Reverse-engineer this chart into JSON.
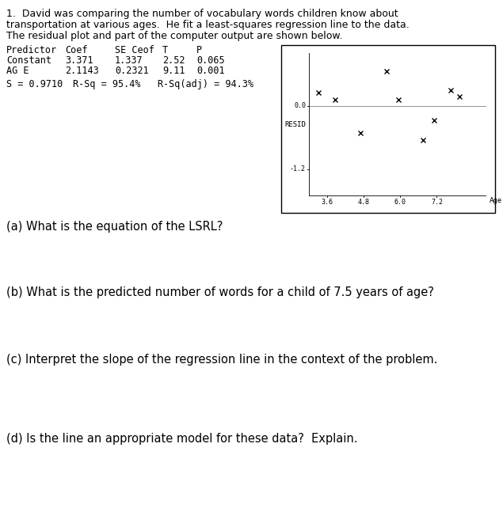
{
  "title_line1": "1.  David was comparing the number of vocabulary words children know about",
  "title_line2": "transportation at various ages.  He fit a least-squares regression line to the data.",
  "title_line3": "The residual plot and part of the computer output are shown below.",
  "table_headers": [
    "Predictor",
    "Coef",
    "SE Ceof",
    "T",
    "P"
  ],
  "table_row1": [
    "Constant",
    "3.371",
    "1.337",
    "2.52",
    "0.065"
  ],
  "table_row2": [
    "AG E",
    "2.1143",
    "0.2321",
    "9.11",
    "0.001"
  ],
  "s_line": "S = 0.9710",
  "rsq_line": "R-Sq = 95.4%   R-Sq(adj) = 94.3%",
  "question_a": "(a) What is the equation of the LSRL?",
  "question_b": "(b) What is the predicted number of words for a child of 7.5 years of age?",
  "question_c": "(c) Interpret the slope of the regression line in the context of the problem.",
  "question_d": "(d) Is the line an appropriate model for these data?  Explain.",
  "resid_plot": {
    "xlabel": "Age",
    "ylabel": "RESID",
    "ytick_0": 0.0,
    "ytick_1": -1.2,
    "xticks": [
      3.6,
      4.8,
      6.0,
      7.2
    ],
    "points_x": [
      3.3,
      3.85,
      4.7,
      5.55,
      5.95,
      6.75,
      7.1,
      7.65,
      7.95
    ],
    "points_y": [
      0.25,
      0.12,
      -0.52,
      0.65,
      0.12,
      -0.65,
      -0.28,
      0.3,
      0.18
    ],
    "x_data_min": 3.0,
    "x_data_max": 8.8,
    "y_data_min": -1.7,
    "y_data_max": 1.0
  },
  "bg_color": "#ffffff",
  "text_font_size": 9.0,
  "table_font_size": 8.5,
  "question_font_size": 10.5
}
